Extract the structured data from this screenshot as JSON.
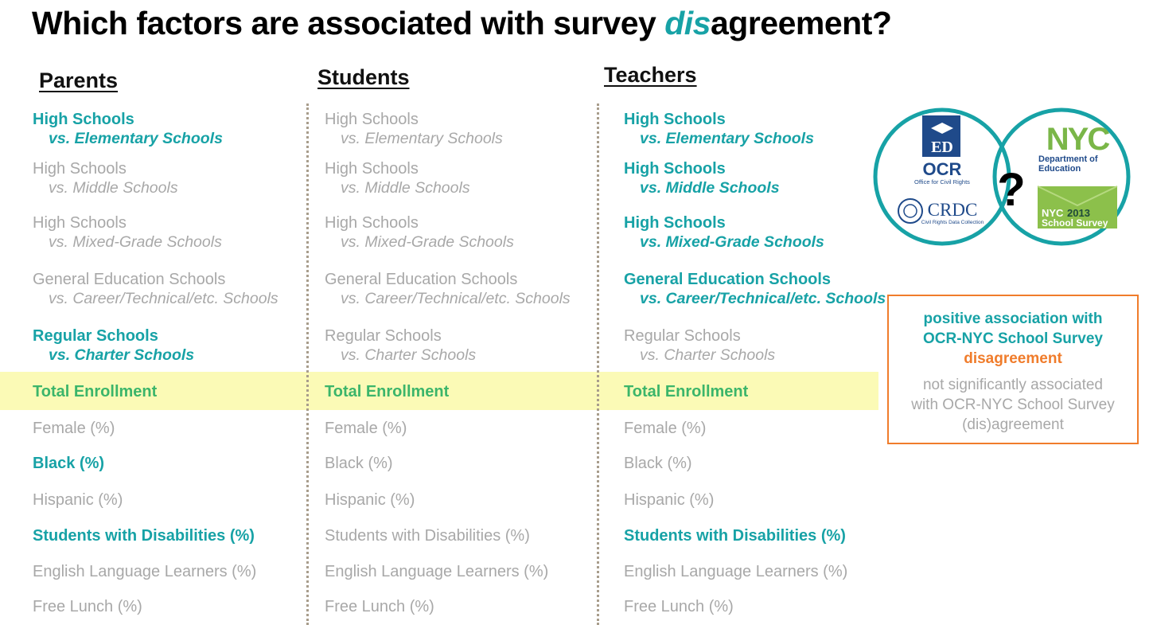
{
  "title": {
    "before": "Which factors are associated with survey ",
    "accent": "dis",
    "after": "agreement?"
  },
  "columns": [
    {
      "heading": "Parents",
      "rows": [
        {
          "main": "High Schools",
          "sub": "vs. Elementary Schools",
          "sig": true
        },
        {
          "main": "High Schools",
          "sub": "vs. Middle Schools",
          "sig": false
        },
        {
          "main": "High Schools",
          "sub": "vs. Mixed-Grade Schools",
          "sig": false
        },
        {
          "main": "General Education Schools",
          "sub": "vs. Career/Technical/etc. Schools",
          "sig": false
        },
        {
          "main": "Regular Schools",
          "sub": "vs. Charter Schools",
          "sig": true
        },
        {
          "main": "Total Enrollment",
          "green": true
        },
        {
          "main": "Female (%)",
          "sig": false
        },
        {
          "main": "Black (%)",
          "sig": true
        },
        {
          "main": "Hispanic (%)",
          "sig": false
        },
        {
          "main": "Students with Disabilities (%)",
          "sig": true
        },
        {
          "main": "English Language Learners (%)",
          "sig": false
        },
        {
          "main": "Free Lunch (%)",
          "sig": false
        }
      ]
    },
    {
      "heading": "Students",
      "rows": [
        {
          "main": "High Schools",
          "sub": "vs. Elementary Schools",
          "sig": false
        },
        {
          "main": "High Schools",
          "sub": "vs. Middle Schools",
          "sig": false
        },
        {
          "main": "High Schools",
          "sub": "vs. Mixed-Grade Schools",
          "sig": false
        },
        {
          "main": "General Education Schools",
          "sub": "vs. Career/Technical/etc. Schools",
          "sig": false
        },
        {
          "main": "Regular Schools",
          "sub": "vs. Charter Schools",
          "sig": false
        },
        {
          "main": "Total Enrollment",
          "green": true
        },
        {
          "main": "Female (%)",
          "sig": false
        },
        {
          "main": "Black (%)",
          "sig": false
        },
        {
          "main": "Hispanic (%)",
          "sig": false
        },
        {
          "main": "Students with Disabilities (%)",
          "sig": false
        },
        {
          "main": "English Language Learners (%)",
          "sig": false
        },
        {
          "main": "Free Lunch (%)",
          "sig": false
        }
      ]
    },
    {
      "heading": "Teachers",
      "rows": [
        {
          "main": "High Schools",
          "sub": "vs. Elementary Schools",
          "sig": true
        },
        {
          "main": "High Schools",
          "sub": "vs. Middle Schools",
          "sig": true
        },
        {
          "main": "High Schools",
          "sub": "vs. Mixed-Grade Schools",
          "sig": true
        },
        {
          "main": "General Education Schools",
          "sub": "vs. Career/Technical/etc. Schools",
          "sig": true
        },
        {
          "main": "Regular Schools",
          "sub": "vs. Charter Schools",
          "sig": false
        },
        {
          "main": "Total Enrollment",
          "green": true
        },
        {
          "main": "Female (%)",
          "sig": false
        },
        {
          "main": "Black (%)",
          "sig": false
        },
        {
          "main": "Hispanic (%)",
          "sig": false
        },
        {
          "main": "Students with Disabilities (%)",
          "sig": true
        },
        {
          "main": "English Language Learners (%)",
          "sig": false
        },
        {
          "main": "Free Lunch (%)",
          "sig": false
        }
      ]
    }
  ],
  "legend": {
    "positive_line1": "positive association with",
    "positive_line2": "OCR-NYC School Survey",
    "disagreement": "disagreement",
    "notsig_line1": "not significantly associated",
    "notsig_line2": "with OCR-NYC School Survey",
    "notsig_line3": "(dis)agreement"
  },
  "logos": {
    "ocr_title": "OCR",
    "ocr_sub": "Office for Civil Rights",
    "crdc_title": "CRDC",
    "crdc_sub": "Civil Rights Data Collection",
    "nyc": "NYC",
    "doe_line1": "Department of",
    "doe_line2": "Education",
    "survey_line1_a": "NYC",
    "survey_line1_b": "2013",
    "survey_line2": "School Survey",
    "question": "?"
  },
  "colors": {
    "significant": "#17a2a6",
    "not_significant": "#a8a8a8",
    "enrollment": "#3bb56a",
    "highlight": "#fbfab6",
    "legend_border": "#f07c2b",
    "disagreement": "#f07c2b"
  }
}
